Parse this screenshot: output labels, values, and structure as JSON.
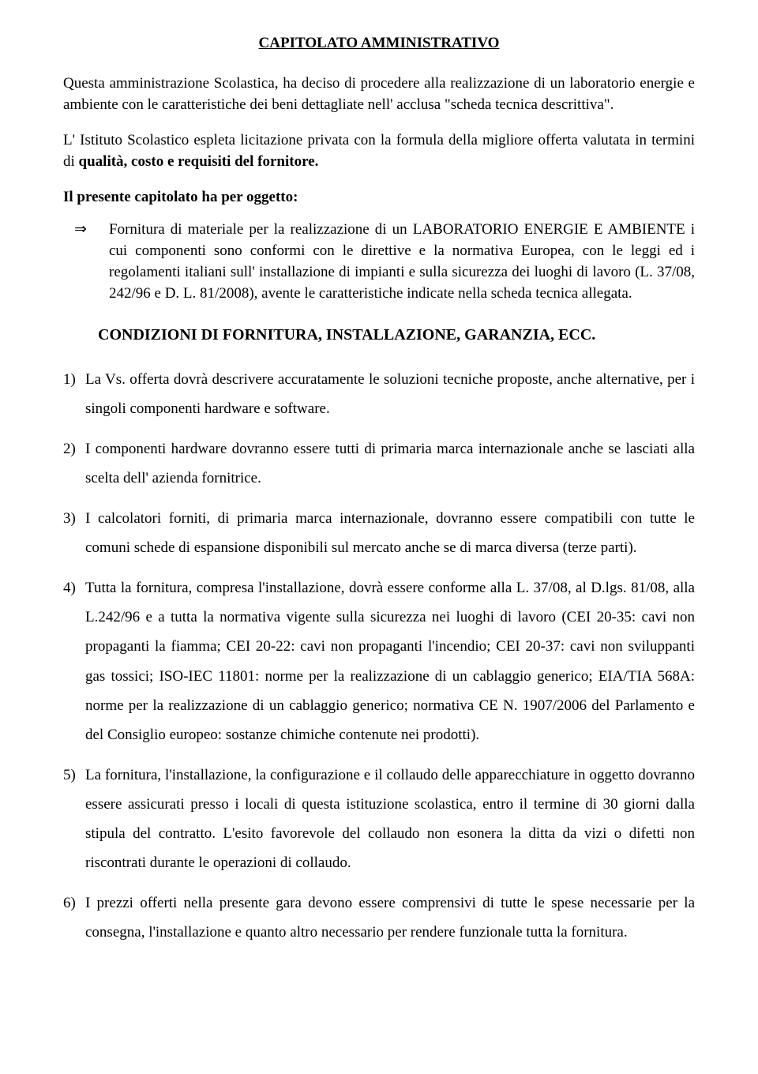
{
  "colors": {
    "text": "#000000",
    "background": "#ffffff"
  },
  "typography": {
    "family": "Times New Roman",
    "body_size_pt": 14,
    "title_size_pt": 14,
    "heading_size_pt": 15
  },
  "title": "CAPITOLATO AMMINISTRATIVO",
  "para1": "Questa amministrazione Scolastica, ha deciso di procedere alla realizzazione di un laboratorio energie e ambiente con le caratteristiche dei beni dettagliate nell' acclusa \"scheda tecnica descrittiva\".",
  "para2_pre": "L' Istituto Scolastico espleta licitazione privata con la formula della migliore offerta valutata in termini di ",
  "para2_bold": "qualità, costo e requisiti del fornitore.",
  "subject_line": "Il presente capitolato ha per oggetto:",
  "bullet_marker": "⇒",
  "bullet_text": "Fornitura di materiale per la realizzazione di un LABORATORIO ENERGIE E AMBIENTE i cui componenti sono conformi con le direttive e la normativa Europea, con le leggi ed i regolamenti italiani sull' installazione di impianti e sulla sicurezza dei luoghi di lavoro (L. 37/08,  242/96 e D. L. 81/2008), avente le  caratteristiche indicate nella scheda tecnica allegata.",
  "section_heading": "CONDIZIONI DI FORNITURA, INSTALLAZIONE, GARANZIA, ECC.",
  "items": [
    "La Vs. offerta dovrà descrivere accuratamente le soluzioni tecniche proposte, anche alternative, per i singoli componenti hardware e software.",
    "I componenti hardware dovranno essere tutti di primaria marca internazionale anche se lasciati alla scelta dell' azienda fornitrice.",
    "I calcolatori forniti, di primaria marca internazionale, dovranno essere compatibili con tutte le comuni schede di espansione disponibili sul mercato anche se di marca diversa (terze parti).",
    "Tutta la fornitura, compresa l'installazione, dovrà essere conforme alla L. 37/08, al D.lgs. 81/08, alla L.242/96 e a tutta la normativa vigente sulla sicurezza nei luoghi di lavoro (CEI 20-35: cavi non propaganti la fiamma; CEI 20-22: cavi non propaganti l'incendio;  CEI 20-37: cavi non sviluppanti gas tossici; ISO-IEC 11801: norme per la realizzazione di un cablaggio generico; EIA/TIA 568A: norme per la realizzazione di un cablaggio generico; normativa CE N. 1907/2006 del Parlamento e del Consiglio europeo: sostanze chimiche contenute nei prodotti).",
    "La fornitura, l'installazione, la configurazione e il collaudo delle apparecchiature in oggetto dovranno essere assicurati presso i locali di questa istituzione scolastica, entro il termine di 30 giorni dalla stipula del contratto. L'esito favorevole del collaudo non esonera la ditta da vizi o difetti non riscontrati durante le operazioni di collaudo.",
    "I prezzi offerti nella presente gara devono essere comprensivi di tutte le spese necessarie per la consegna, l'installazione e quanto altro necessario per rendere funzionale tutta la fornitura."
  ]
}
